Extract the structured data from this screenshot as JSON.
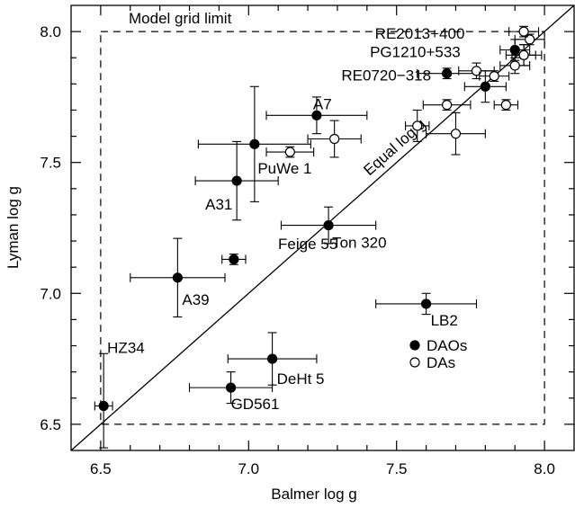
{
  "chart_data": {
    "type": "scatter",
    "xlabel": "Balmer log g",
    "ylabel": "Lyman log g",
    "xlim": [
      6.4,
      8.1
    ],
    "ylim": [
      6.4,
      8.1
    ],
    "x_ticks": [
      "6.5",
      "7.0",
      "7.5",
      "8.0"
    ],
    "y_ticks": [
      "6.5",
      "7.0",
      "7.5",
      "8.0"
    ],
    "grid": false,
    "legend_position": "lower-right",
    "grid_limit": {
      "label": "Model grid limit",
      "x": [
        6.5,
        8.0
      ],
      "y": [
        6.5,
        8.0
      ]
    },
    "equality_line": {
      "label": "Equal log g",
      "from": [
        6.4,
        6.4
      ],
      "to": [
        8.1,
        8.1
      ]
    },
    "series": [
      {
        "name": "DAOs",
        "marker": "filled-circle",
        "points": [
          {
            "label": "HZ34",
            "x": 6.51,
            "y": 6.57,
            "xerr": 0.03,
            "yerr": [
              0.16,
              0.2
            ]
          },
          {
            "label": "GD561",
            "x": 6.94,
            "y": 6.64,
            "xerr": 0.14,
            "yerr": 0.06
          },
          {
            "label": "DeHt 5",
            "x": 7.08,
            "y": 6.75,
            "xerr": 0.15,
            "yerr": 0.1
          },
          {
            "label": "A39",
            "x": 6.76,
            "y": 7.06,
            "xerr": 0.16,
            "yerr": 0.15
          },
          {
            "label": "Feige 55",
            "x": 6.95,
            "y": 7.13,
            "xerr": 0.04,
            "yerr": 0.02
          },
          {
            "label": "Ton 320",
            "x": 7.27,
            "y": 7.26,
            "xerr": 0.16,
            "yerr": 0.07
          },
          {
            "label": "A31",
            "x": 6.96,
            "y": 7.43,
            "xerr": 0.14,
            "yerr": 0.15
          },
          {
            "label": "",
            "x": 7.02,
            "y": 7.57,
            "xerr": 0.19,
            "yerr": 0.22
          },
          {
            "label": "A7",
            "x": 7.23,
            "y": 7.68,
            "xerr": 0.17,
            "yerr": 0.07
          },
          {
            "label": "LB2",
            "x": 7.6,
            "y": 6.96,
            "xerr": 0.17,
            "yerr": 0.04
          },
          {
            "label": "RE0720−318",
            "x": 7.8,
            "y": 7.79,
            "xerr": 0.07,
            "yerr": 0.06
          },
          {
            "label": "",
            "x": 7.67,
            "y": 7.84,
            "xerr": 0.1,
            "yerr": 0.02
          },
          {
            "label": "",
            "x": 7.9,
            "y": 7.93,
            "xerr": 0.05,
            "yerr": 0.04
          }
        ]
      },
      {
        "name": "DAs",
        "marker": "open-circle",
        "points": [
          {
            "label": "PuWe 1",
            "x": 7.14,
            "y": 7.54,
            "xerr": 0.08,
            "yerr": 0.02
          },
          {
            "label": "",
            "x": 7.29,
            "y": 7.59,
            "xerr": 0.09,
            "yerr": 0.07
          },
          {
            "label": "",
            "x": 7.57,
            "y": 7.64,
            "xerr": 0.04,
            "yerr": 0.06
          },
          {
            "label": "",
            "x": 7.67,
            "y": 7.72,
            "xerr": 0.08,
            "yerr": 0.02
          },
          {
            "label": "",
            "x": 7.7,
            "y": 7.61,
            "xerr": 0.1,
            "yerr": 0.08
          },
          {
            "label": "",
            "x": 7.77,
            "y": 7.85,
            "xerr": 0.06,
            "yerr": 0.03
          },
          {
            "label": "",
            "x": 7.83,
            "y": 7.83,
            "xerr": 0.05,
            "yerr": 0.02
          },
          {
            "label": "",
            "x": 7.87,
            "y": 7.72,
            "xerr": 0.04,
            "yerr": 0.02
          },
          {
            "label": "",
            "x": 7.9,
            "y": 7.87,
            "xerr": 0.05,
            "yerr": 0.03
          },
          {
            "label": "",
            "x": 7.93,
            "y": 7.91,
            "xerr": 0.06,
            "yerr": 0.04
          },
          {
            "label": "PG1210+533",
            "x": 7.93,
            "y": 7.91,
            "xerr": 0.04,
            "yerr": 0.04
          },
          {
            "label": "RE2013+400",
            "x": 7.95,
            "y": 7.97,
            "xerr": 0.05,
            "yerr": 0.02
          },
          {
            "label": "",
            "x": 7.93,
            "y": 8.0,
            "xerr": 0.05,
            "yerr": 0.02
          }
        ]
      }
    ],
    "legend": [
      {
        "marker": "filled-circle",
        "label": "DAOs"
      },
      {
        "marker": "open-circle",
        "label": "DAs"
      }
    ]
  }
}
